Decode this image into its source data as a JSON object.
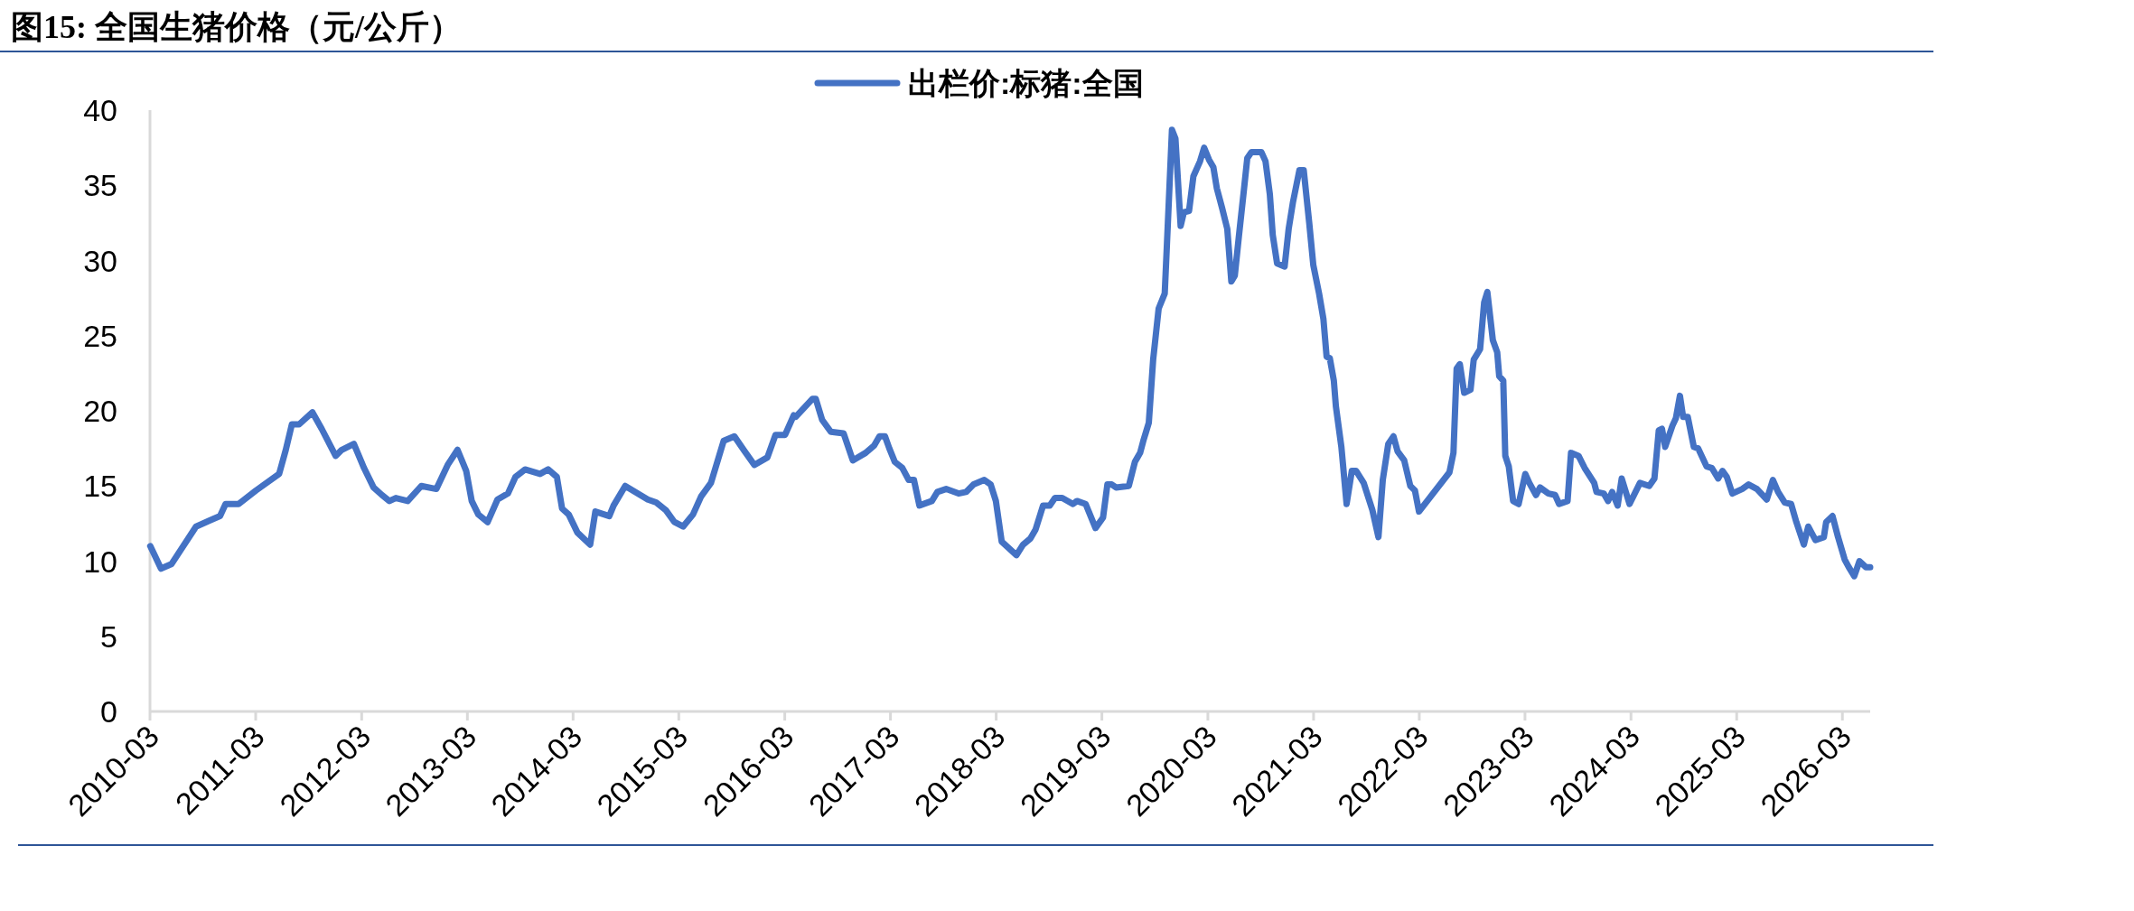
{
  "chart_data": {
    "type": "line",
    "title": "图15: 全国生猪价格（元/公斤）",
    "legend": "top",
    "xlim": [
      "2010-03",
      "2026-06-05"
    ],
    "xticks": [
      "2010-03",
      "2011-03",
      "2012-03",
      "2013-03",
      "2014-03",
      "2015-03",
      "2016-03",
      "2017-03",
      "2018-03",
      "2019-03",
      "2020-03",
      "2021-03",
      "2022-03",
      "2023-03",
      "2024-03",
      "2025-03",
      "2026-03"
    ],
    "ylim": [
      0,
      40
    ],
    "yticks": [
      0,
      5,
      10,
      15,
      20,
      25,
      30,
      35,
      40
    ],
    "grid": false,
    "marker": "none",
    "line_style": "solid",
    "series": [
      {
        "name": "出栏价:标猪:全国",
        "color": "#4472c4",
        "x": [
          "2010-03-02",
          "2010-04-08",
          "2010-05-14",
          "2010-08-07",
          "2010-09-23",
          "2010-10-29",
          "2010-11-17",
          "2011-01-01",
          "2011-03-02",
          "2011-05-21",
          "2011-06-13",
          "2011-07-04",
          "2011-07-29",
          "2011-09-13",
          "2011-10-15",
          "2011-12-02",
          "2011-12-23",
          "2012-02-03",
          "2012-03-09",
          "2012-04-11",
          "2012-05-10",
          "2012-06-05",
          "2012-06-27",
          "2012-08-07",
          "2012-09-23",
          "2012-11-14",
          "2012-12-23",
          "2013-01-26",
          "2013-02-25",
          "2013-03-16",
          "2013-04-08",
          "2013-05-10",
          "2013-06-13",
          "2013-07-19",
          "2013-08-14",
          "2013-09-16",
          "2013-11-07",
          "2013-12-05",
          "2014-01-04",
          "2014-01-22",
          "2014-02-14",
          "2014-03-16",
          "2014-04-29",
          "2014-05-17",
          "2014-07-04",
          "2014-07-19",
          "2014-08-28",
          "2014-11-14",
          "2014-12-13",
          "2015-01-15",
          "2015-02-14",
          "2015-03-16",
          "2015-04-19",
          "2015-05-17",
          "2015-06-20",
          "2015-08-03",
          "2015-09-09",
          "2015-10-11",
          "2015-11-17",
          "2016-01-01",
          "2016-01-29",
          "2016-03-02",
          "2016-04-01",
          "2016-04-08",
          "2016-05-07",
          "2016-06-05",
          "2016-06-16",
          "2016-07-08",
          "2016-08-07",
          "2016-09-20",
          "2016-10-22",
          "2016-12-05",
          "2017-01-04",
          "2017-01-22",
          "2017-02-10",
          "2017-02-25",
          "2017-03-16",
          "2017-04-11",
          "2017-05-03",
          "2017-05-21",
          "2017-06-09",
          "2017-07-22",
          "2017-08-10",
          "2017-09-09",
          "2017-10-22",
          "2017-11-17",
          "2017-12-13",
          "2018-01-19",
          "2018-02-10",
          "2018-02-28",
          "2018-03-20",
          "2018-05-10",
          "2018-06-02",
          "2018-06-27",
          "2018-07-15",
          "2018-08-10",
          "2018-09-02",
          "2018-09-20",
          "2018-10-15",
          "2018-11-21",
          "2018-12-05",
          "2019-01-04",
          "2019-02-07",
          "2019-03-05",
          "2019-03-20",
          "2019-04-04",
          "2019-04-19",
          "2019-06-02",
          "2019-06-23",
          "2019-07-11",
          "2019-07-22",
          "2019-08-10",
          "2019-08-25",
          "2019-09-13",
          "2019-10-04",
          "2019-10-11",
          "2019-10-29",
          "2019-11-10",
          "2019-11-28",
          "2019-12-09",
          "2019-12-27",
          "2020-01-11",
          "2020-02-03",
          "2020-02-17",
          "2020-03-05",
          "2020-03-20",
          "2020-04-01",
          "2020-04-19",
          "2020-05-07",
          "2020-05-21",
          "2020-06-02",
          "2020-06-16",
          "2020-07-04",
          "2020-07-15",
          "2020-07-29",
          "2020-08-10",
          "2020-09-02",
          "2020-09-16",
          "2020-10-01",
          "2020-10-11",
          "2020-10-26",
          "2020-11-21",
          "2020-12-05",
          "2020-12-20",
          "2021-01-11",
          "2021-01-26",
          "2021-02-14",
          "2021-02-28",
          "2021-03-20",
          "2021-04-04",
          "2021-04-15",
          "2021-04-26",
          "2021-05-10",
          "2021-05-17",
          "2021-06-05",
          "2021-06-23",
          "2021-07-11",
          "2021-07-26",
          "2021-08-21",
          "2021-09-20",
          "2021-10-11",
          "2021-10-26",
          "2021-11-14",
          "2021-12-02",
          "2021-12-16",
          "2022-01-08",
          "2022-01-29",
          "2022-02-14",
          "2022-02-28",
          "2022-06-13",
          "2022-06-27",
          "2022-07-08",
          "2022-07-19",
          "2022-08-03",
          "2022-08-25",
          "2022-09-05",
          "2022-09-27",
          "2022-10-11",
          "2022-10-22",
          "2022-11-10",
          "2022-11-25",
          "2022-12-02",
          "2022-12-16",
          "2022-12-23",
          "2023-01-04",
          "2023-01-19",
          "2023-02-07",
          "2023-03-02",
          "2023-03-16",
          "2023-04-08",
          "2023-04-22",
          "2023-05-21",
          "2023-06-13",
          "2023-06-27",
          "2023-07-26",
          "2023-08-07",
          "2023-09-02",
          "2023-09-23",
          "2023-10-26",
          "2023-11-03",
          "2023-11-28",
          "2023-12-13",
          "2023-12-27",
          "2024-01-15",
          "2024-01-29",
          "2024-02-25",
          "2024-04-01",
          "2024-05-03",
          "2024-05-21",
          "2024-06-05",
          "2024-06-16",
          "2024-06-27",
          "2024-07-22",
          "2024-08-03",
          "2024-08-17",
          "2024-08-28",
          "2024-09-13",
          "2024-10-04",
          "2024-10-19",
          "2024-11-17",
          "2024-12-05",
          "2024-12-27",
          "2025-01-11",
          "2025-01-26",
          "2025-02-14",
          "2025-03-20",
          "2025-04-11",
          "2025-05-10",
          "2025-06-13",
          "2025-07-04",
          "2025-07-22",
          "2025-08-14",
          "2025-09-05",
          "2025-09-23",
          "2025-10-19",
          "2025-11-03",
          "2025-11-28",
          "2025-12-27",
          "2026-01-04",
          "2026-01-26",
          "2026-02-14",
          "2026-03-09",
          "2026-03-23",
          "2026-04-11",
          "2026-04-29",
          "2026-05-21",
          "2026-06-05"
        ],
        "values": [
          11.0,
          9.5,
          9.8,
          12.3,
          12.7,
          13.0,
          13.8,
          13.8,
          14.7,
          15.8,
          17.4,
          19.1,
          19.1,
          19.9,
          18.8,
          17.0,
          17.4,
          17.8,
          16.2,
          14.9,
          14.4,
          14.0,
          14.2,
          14.0,
          15.0,
          14.8,
          16.4,
          17.4,
          16.0,
          14.0,
          13.1,
          12.6,
          14.1,
          14.5,
          15.6,
          16.1,
          15.8,
          16.1,
          15.6,
          13.5,
          13.1,
          11.9,
          11.1,
          13.3,
          13.0,
          13.7,
          15.0,
          14.1,
          13.9,
          13.4,
          12.6,
          12.3,
          13.1,
          14.3,
          15.2,
          18.0,
          18.3,
          17.4,
          16.4,
          16.9,
          18.4,
          18.4,
          19.7,
          19.6,
          20.2,
          20.8,
          20.8,
          19.4,
          18.6,
          18.5,
          16.7,
          17.2,
          17.7,
          18.3,
          18.3,
          17.5,
          16.6,
          16.2,
          15.4,
          15.4,
          13.7,
          14.0,
          14.6,
          14.8,
          14.5,
          14.6,
          15.1,
          15.4,
          15.1,
          14.0,
          11.3,
          10.4,
          11.1,
          11.5,
          12.1,
          13.7,
          13.7,
          14.2,
          14.2,
          13.8,
          14.0,
          13.8,
          12.2,
          12.9,
          15.1,
          15.1,
          14.9,
          15.0,
          16.6,
          17.2,
          18.0,
          19.2,
          23.4,
          26.8,
          27.8,
          30.8,
          38.7,
          38.1,
          32.3,
          33.2,
          33.3,
          35.6,
          36.6,
          37.5,
          36.7,
          36.2,
          34.8,
          33.5,
          32.1,
          28.6,
          29.0,
          31.6,
          34.8,
          36.8,
          37.2,
          37.2,
          37.2,
          36.6,
          34.4,
          31.7,
          29.8,
          29.6,
          32.1,
          33.9,
          36.0,
          36.0,
          32.5,
          29.7,
          27.8,
          26.1,
          23.6,
          23.5,
          22.0,
          20.3,
          17.6,
          13.8,
          16.0,
          16.0,
          15.2,
          13.4,
          11.6,
          15.4,
          17.8,
          18.3,
          17.3,
          16.7,
          15.0,
          14.7,
          13.3,
          15.9,
          17.2,
          22.8,
          23.1,
          21.2,
          21.4,
          23.4,
          24.1,
          27.2,
          27.9,
          24.7,
          23.9,
          22.3,
          22.0,
          17.0,
          16.3,
          14.0,
          13.8,
          15.8,
          15.2,
          14.4,
          14.9,
          14.5,
          14.4,
          13.8,
          14.0,
          17.2,
          17.0,
          16.2,
          15.2,
          14.6,
          14.5,
          14.0,
          14.6,
          13.7,
          15.5,
          13.8,
          15.2,
          15.0,
          15.5,
          18.7,
          18.8,
          17.6,
          19.0,
          19.5,
          21.0,
          19.6,
          19.6,
          17.6,
          17.5,
          16.3,
          16.2,
          15.5,
          16.0,
          15.6,
          14.5,
          14.8,
          15.1,
          14.8,
          14.1,
          15.4,
          14.6,
          13.9,
          13.8,
          12.6,
          11.1,
          12.3,
          11.4,
          11.6,
          12.6,
          13.0,
          11.6,
          10.1,
          9.6,
          9.0,
          10.0,
          9.6,
          9.6
        ]
      }
    ]
  }
}
